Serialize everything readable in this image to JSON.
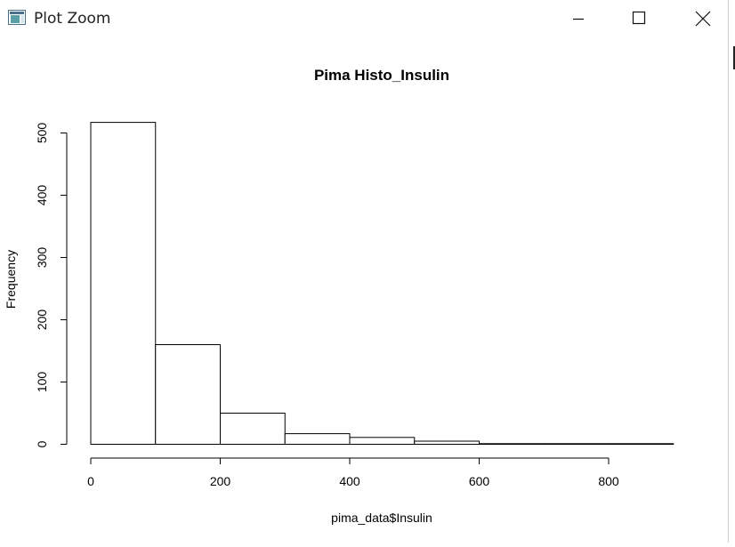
{
  "window": {
    "title": "Plot Zoom",
    "icon": "plot-window-icon",
    "buttons": [
      {
        "name": "minimize",
        "icon": "minimize-icon"
      },
      {
        "name": "maximize",
        "icon": "maximize-icon"
      },
      {
        "name": "close",
        "icon": "close-icon"
      }
    ]
  },
  "chart_data": {
    "type": "bar",
    "subtype": "histogram",
    "title": "Pima Histo_Insulin",
    "xlabel": "pima_data$Insulin",
    "ylabel": "Frequency",
    "bins": [
      {
        "start": 0,
        "end": 100,
        "count": 517
      },
      {
        "start": 100,
        "end": 200,
        "count": 160
      },
      {
        "start": 200,
        "end": 300,
        "count": 50
      },
      {
        "start": 300,
        "end": 400,
        "count": 17
      },
      {
        "start": 400,
        "end": 500,
        "count": 11
      },
      {
        "start": 500,
        "end": 600,
        "count": 5
      },
      {
        "start": 600,
        "end": 700,
        "count": 1
      },
      {
        "start": 700,
        "end": 800,
        "count": 1
      },
      {
        "start": 800,
        "end": 900,
        "count": 1
      }
    ],
    "xticks": [
      0,
      200,
      400,
      600,
      800
    ],
    "yticks": [
      0,
      100,
      200,
      300,
      400,
      500
    ],
    "xlim": [
      0,
      800
    ],
    "ylim": [
      0,
      500
    ],
    "grid": false,
    "legend": "none",
    "bar_fill": "#ffffff",
    "bar_stroke": "#000000"
  }
}
